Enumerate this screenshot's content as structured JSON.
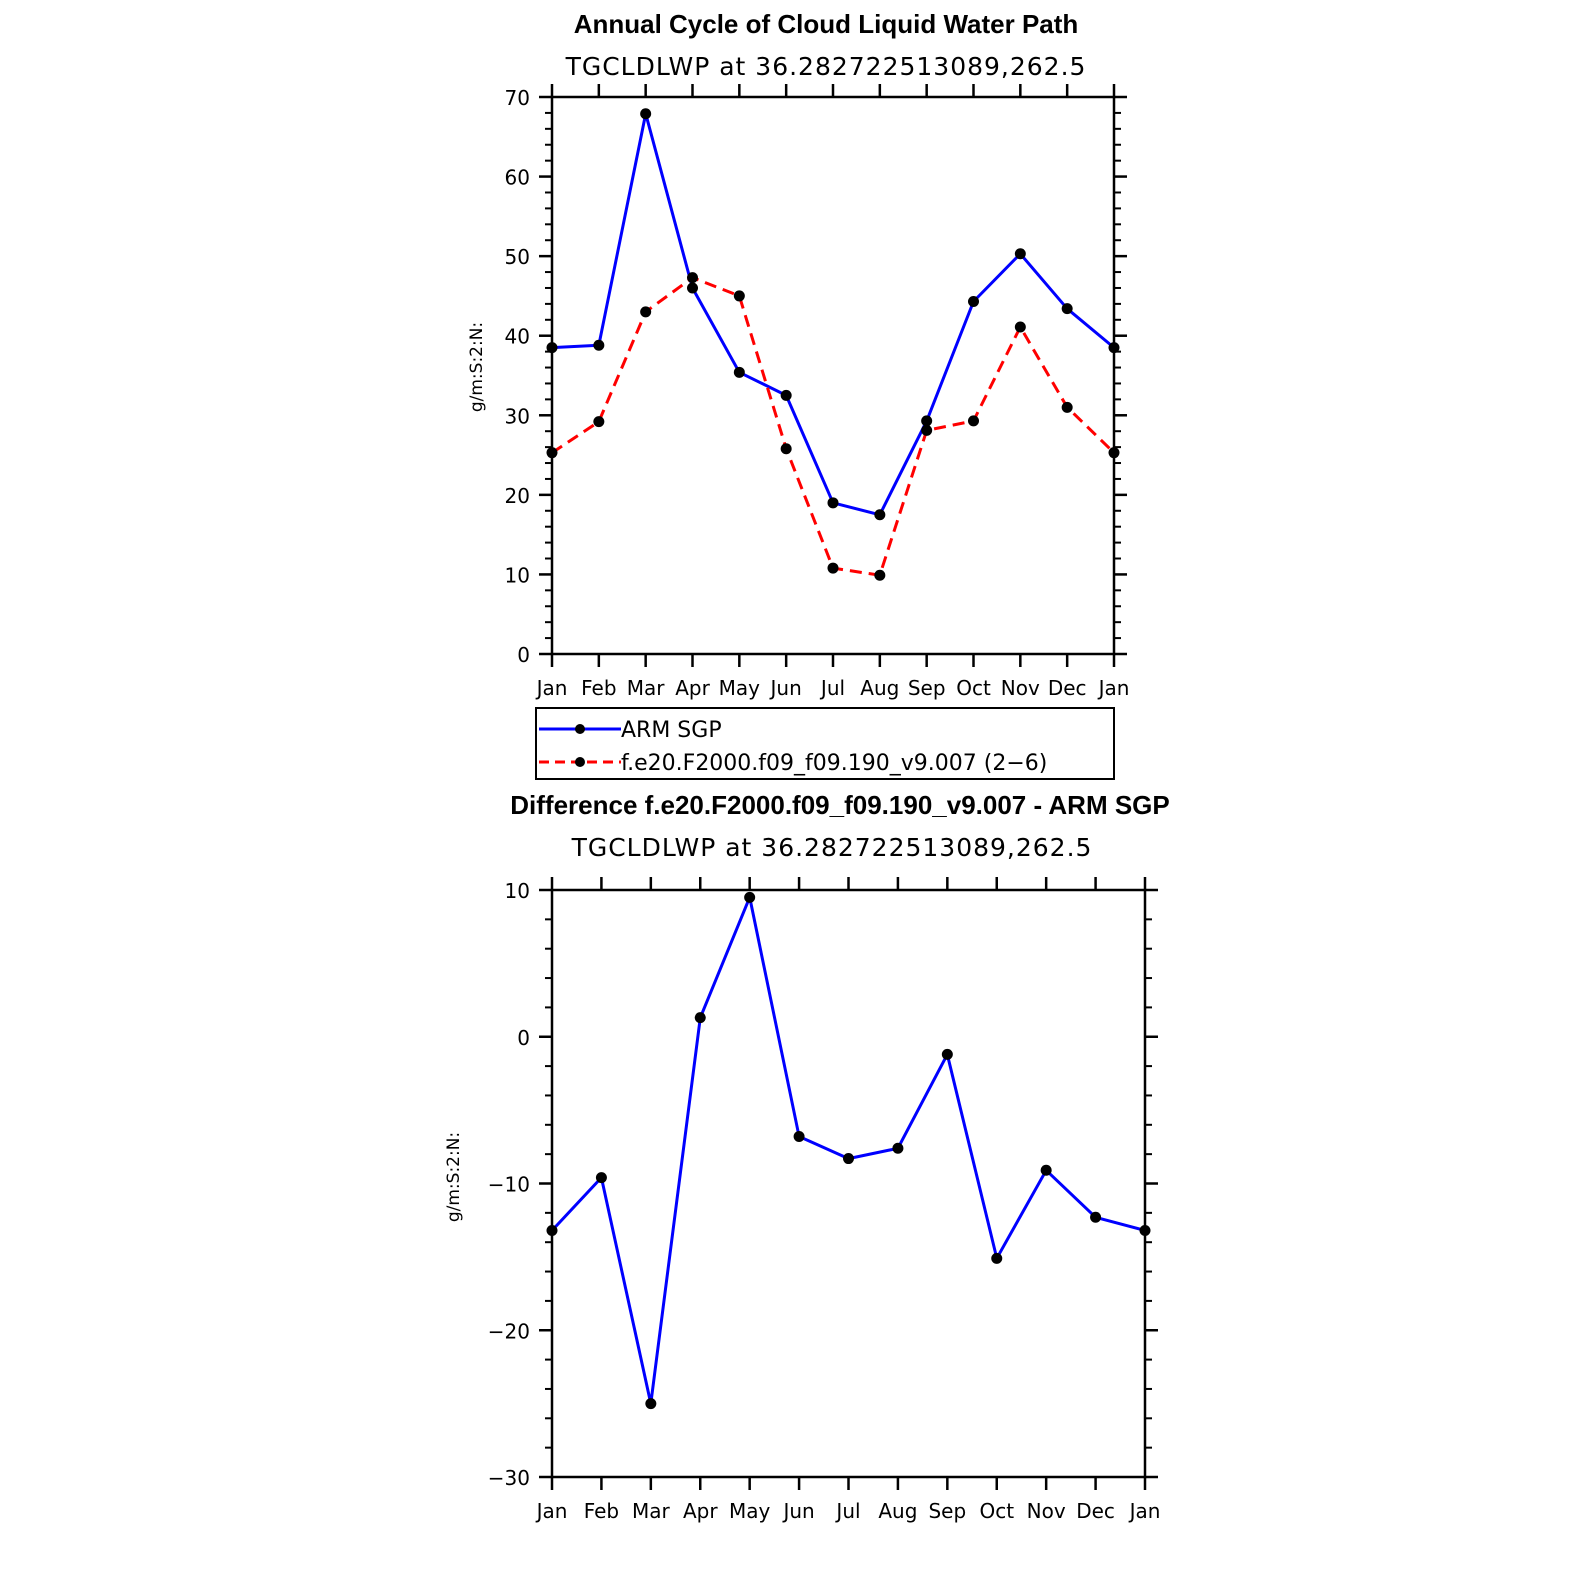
{
  "chart_data": [
    {
      "type": "line",
      "title": "Annual Cycle of Cloud Liquid Water Path",
      "subtitle": "TGCLDLWP  at  36.282722513089,262.5",
      "xlabel": "",
      "ylabel": "g/m:S:2:N:",
      "categories": [
        "Jan",
        "Feb",
        "Mar",
        "Apr",
        "May",
        "Jun",
        "Jul",
        "Aug",
        "Sep",
        "Oct",
        "Nov",
        "Dec",
        "Jan"
      ],
      "ylim": [
        0,
        70
      ],
      "yticks": [
        0,
        10,
        20,
        30,
        40,
        50,
        60,
        70
      ],
      "ytick_labels": [
        "0",
        "10",
        "20",
        "30",
        "40",
        "50",
        "60",
        "70"
      ],
      "series": [
        {
          "name": "ARM  SGP",
          "color": "#0000ff",
          "dashed": false,
          "values": [
            38.5,
            38.8,
            67.9,
            46.0,
            35.4,
            32.5,
            19.0,
            17.5,
            29.3,
            44.3,
            50.3,
            43.4,
            38.5
          ]
        },
        {
          "name": "f.e20.F2000.f09_f09.190_v9.007 (2−6)",
          "color": "#ff0000",
          "dashed": true,
          "values": [
            25.3,
            29.2,
            43.0,
            47.3,
            45.0,
            25.8,
            10.8,
            9.9,
            28.1,
            29.3,
            41.1,
            31.0,
            25.3
          ]
        }
      ],
      "legend": "below"
    },
    {
      "type": "line",
      "title": "Difference f.e20.F2000.f09_f09.190_v9.007 - ARM SGP",
      "subtitle": "TGCLDLWP  at  36.282722513089,262.5",
      "xlabel": "",
      "ylabel": "g/m:S:2:N:",
      "categories": [
        "Jan",
        "Feb",
        "Mar",
        "Apr",
        "May",
        "Jun",
        "Jul",
        "Aug",
        "Sep",
        "Oct",
        "Nov",
        "Dec",
        "Jan"
      ],
      "ylim": [
        -30,
        10
      ],
      "yticks": [
        -30,
        -20,
        -10,
        0,
        10
      ],
      "ytick_labels": [
        "−30",
        "−20",
        "−10",
        "0",
        "10"
      ],
      "series": [
        {
          "color": "#0000ff",
          "dashed": false,
          "values": [
            -13.2,
            -9.6,
            -25.0,
            1.3,
            9.5,
            -6.8,
            -8.3,
            -7.6,
            -1.2,
            -15.1,
            -9.1,
            -12.3,
            -13.2
          ]
        }
      ]
    }
  ]
}
